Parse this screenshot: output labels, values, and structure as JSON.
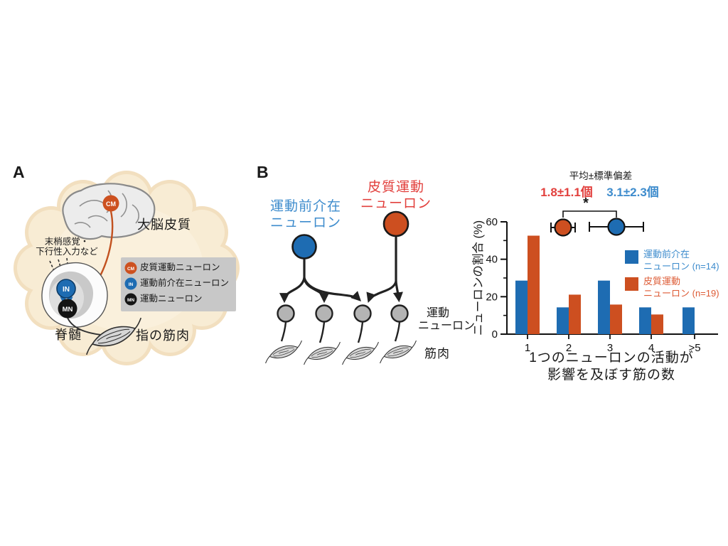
{
  "colors": {
    "blue": "#1e6cb2",
    "orange": "#cd4f20",
    "blue_text": "#3e8ccd",
    "red_text": "#e2403d",
    "legend_orange_text": "#dd5b35",
    "cloud": "#f8ecd4",
    "legend_box": "#c8c8c8"
  },
  "panel_a": {
    "label": "A",
    "cortex_label": "大脳皮質",
    "input_label_line1": "末梢感覚・",
    "input_label_line2": "下行性入力など",
    "spinal_label": "脊髄",
    "muscle_label": "指の筋肉",
    "nodes": {
      "cm": "CM",
      "in": "IN",
      "mn": "MN"
    },
    "legend": [
      {
        "abbr": "CM",
        "label": "皮質運動ニューロン"
      },
      {
        "abbr": "IN",
        "label": "運動前介在ニューロン"
      },
      {
        "abbr": "MN",
        "label": "運動ニューロン"
      }
    ]
  },
  "panel_b": {
    "label": "B",
    "premotor_line1": "運動前介在",
    "premotor_line2": "ニューロン",
    "corticomotor_line1": "皮質運動",
    "corticomotor_line2": "ニューロン",
    "motorneuron_line1": "運動",
    "motorneuron_line2": "ニューロン",
    "muscle_label": "筋肉"
  },
  "chart_data": {
    "type": "bar",
    "title": "平均±標準偏差",
    "categories": [
      "1",
      "2",
      "3",
      "4",
      ">5"
    ],
    "series": [
      {
        "name": "運動前介在ニューロン (n=14)",
        "legend_line1": "運動前介在",
        "legend_line2": "ニューロン (n=14)",
        "color": "#1e6cb2",
        "values": [
          28.6,
          14.3,
          28.6,
          14.3,
          14.3
        ]
      },
      {
        "name": "皮質運動ニューロン (n=19)",
        "legend_line1": "皮質運動",
        "legend_line2": "ニューロン (n=19)",
        "color": "#cd4f20",
        "values": [
          52.6,
          21.1,
          15.8,
          10.5,
          0
        ]
      }
    ],
    "xlabel": "1つのニューロンの活動が影響を及ぼす筋の数",
    "xlabel_line1": "1つのニューロンの活動が",
    "xlabel_line2": "影響を及ぼす筋の数",
    "ylabel": "ニューロンの割合 (%)",
    "ylim": [
      0,
      60
    ],
    "yticks": [
      0,
      20,
      40,
      60
    ],
    "yticks_minor": [
      10,
      30,
      50
    ],
    "grid": false,
    "legend_position": "right",
    "annotation": {
      "header": "平均±標準偏差",
      "cm_mean_sd": "1.8±1.1個",
      "premotor_mean_sd": "3.1±2.3個",
      "significance": "*"
    }
  }
}
